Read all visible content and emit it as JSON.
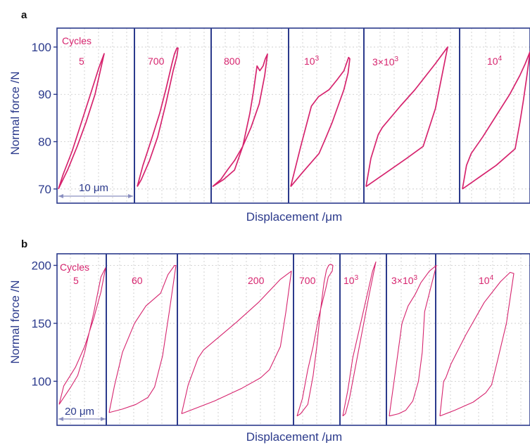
{
  "colors": {
    "frame": "#2b3a8c",
    "curve": "#d6246e",
    "grid": "#c8c8c8",
    "scale_bar": "#8a8fc0"
  },
  "chart_data": [
    {
      "type": "line",
      "panel_label": "a",
      "xlabel": "Displacement /μm",
      "ylabel": "Normal force /N",
      "yticks": [
        "70",
        "80",
        "90",
        "100"
      ],
      "ylim": [
        67,
        104
      ],
      "legend_title": "Cycles",
      "scale_bar_label": "10 μm",
      "grid": true,
      "series": [
        {
          "cycles": "5",
          "label_base": "5",
          "label_exp": "",
          "x": [
            0.0,
            0.2,
            0.41,
            0.6,
            0.8,
            1.0,
            0.88,
            0.7,
            0.5,
            0.3,
            0.1,
            0.0
          ],
          "y": [
            70,
            74,
            79,
            84,
            90,
            98.6,
            95.5,
            90,
            84,
            78,
            73,
            70
          ]
        },
        {
          "cycles": "700",
          "label_base": "700",
          "label_exp": "",
          "x": [
            0.0,
            0.14,
            0.35,
            0.55,
            0.7,
            0.85,
            0.91,
            0.97,
            1.0,
            0.97,
            0.88,
            0.7,
            0.5,
            0.3,
            0.1,
            0.0
          ],
          "y": [
            70.5,
            75,
            80.5,
            86,
            91,
            96.5,
            98.5,
            99.8,
            99.8,
            98,
            95,
            88,
            81,
            76,
            72,
            70.5
          ]
        },
        {
          "cycles": "800",
          "label_base": "800",
          "label_exp": "",
          "x": [
            0.0,
            0.2,
            0.4,
            0.55,
            0.68,
            0.75,
            0.78,
            0.81,
            0.86,
            0.92,
            0.96,
            1.0,
            0.95,
            0.85,
            0.7,
            0.55,
            0.4,
            0.27,
            0.15,
            0.0
          ],
          "y": [
            70.5,
            72,
            74,
            79,
            86,
            91,
            93.5,
            96,
            95,
            96,
            97.5,
            98.5,
            94,
            88,
            83,
            79,
            76,
            74,
            72,
            70.5
          ]
        },
        {
          "cycles": "10",
          "label_base": "10",
          "label_exp": "3",
          "x": [
            0.0,
            0.2,
            0.48,
            0.6,
            0.7,
            0.8,
            0.9,
            0.97,
            1.0,
            0.98,
            0.9,
            0.78,
            0.65,
            0.47,
            0.35,
            0.17,
            0.0
          ],
          "y": [
            70.5,
            73.5,
            77.5,
            81,
            84,
            87.5,
            91,
            94.5,
            97.5,
            97.8,
            95,
            93,
            91,
            89.5,
            87.5,
            79,
            70.5
          ]
        },
        {
          "cycles": "3×10³",
          "label_base": "3×10",
          "label_exp": "3",
          "x": [
            0.0,
            0.25,
            0.5,
            0.7,
            0.85,
            1.0,
            0.85,
            0.6,
            0.42,
            0.2,
            0.15,
            0.06,
            0.0
          ],
          "y": [
            70.5,
            73.5,
            76.5,
            79,
            87,
            100,
            96.5,
            91,
            87.5,
            83,
            81.5,
            76.5,
            70.5
          ]
        },
        {
          "cycles": "10",
          "label_base": "10",
          "label_exp": "4",
          "x": [
            0.0,
            0.25,
            0.5,
            0.78,
            0.85,
            0.9,
            0.95,
            1.0,
            0.93,
            0.85,
            0.7,
            0.5,
            0.3,
            0.13,
            0.06,
            0.0
          ],
          "y": [
            70,
            72.5,
            75,
            78.5,
            84,
            88.5,
            93.5,
            99,
            96.5,
            94,
            90,
            85.5,
            81,
            77.5,
            75,
            70
          ]
        }
      ]
    },
    {
      "type": "line",
      "panel_label": "b",
      "xlabel": "Displacement /μm",
      "ylabel": "Normal force /N",
      "yticks": [
        "100",
        "150",
        "200"
      ],
      "ylim": [
        62,
        210
      ],
      "legend_title": "Cycles",
      "scale_bar_label": "20 μm",
      "grid": true,
      "series": [
        {
          "cycles": "5",
          "label_base": "5",
          "label_exp": "",
          "x": [
            0.0,
            0.1,
            0.35,
            0.55,
            0.75,
            0.9,
            1.0,
            0.9,
            0.75,
            0.55,
            0.4,
            0.25,
            0.1,
            0.0
          ],
          "y": [
            80,
            96,
            112,
            130,
            155,
            177,
            198,
            190,
            160,
            125,
            105,
            95,
            86,
            80
          ]
        },
        {
          "cycles": "60",
          "label_base": "60",
          "label_exp": "",
          "x": [
            0.0,
            0.2,
            0.4,
            0.58,
            0.68,
            0.8,
            0.9,
            1.0,
            0.98,
            0.88,
            0.77,
            0.55,
            0.38,
            0.2,
            0.08,
            0.0
          ],
          "y": [
            73,
            76,
            80,
            86,
            95,
            122,
            160,
            200,
            200,
            192,
            176,
            165,
            150,
            125,
            96,
            73
          ]
        },
        {
          "cycles": "200",
          "label_base": "200",
          "label_exp": "",
          "x": [
            0.0,
            0.3,
            0.55,
            0.72,
            0.8,
            0.9,
            0.95,
            1.0,
            0.9,
            0.7,
            0.5,
            0.35,
            0.2,
            0.15,
            0.06,
            0.0
          ],
          "y": [
            72,
            83,
            94,
            103,
            110,
            130,
            160,
            195,
            188,
            168,
            151,
            139,
            127,
            120,
            97,
            72
          ]
        },
        {
          "cycles": "700",
          "label_base": "700",
          "label_exp": "",
          "x": [
            0.0,
            0.1,
            0.3,
            0.45,
            0.55,
            0.65,
            0.75,
            0.82,
            0.88,
            0.93,
            1.0,
            0.98,
            0.87,
            0.8,
            0.6,
            0.45,
            0.3,
            0.15,
            0.0
          ],
          "y": [
            70,
            72,
            80,
            105,
            130,
            160,
            185,
            196,
            200,
            201,
            200,
            195,
            190,
            180,
            155,
            130,
            110,
            85,
            70
          ]
        },
        {
          "cycles": "10",
          "label_base": "10",
          "label_exp": "3",
          "x": [
            0.0,
            0.08,
            0.2,
            0.4,
            0.6,
            0.8,
            1.0,
            0.9,
            0.7,
            0.5,
            0.3,
            0.15,
            0.0
          ],
          "y": [
            70,
            72,
            85,
            115,
            145,
            175,
            203,
            195,
            170,
            145,
            120,
            92,
            70
          ]
        },
        {
          "cycles": "3×10³",
          "label_base": "3×10",
          "label_exp": "3",
          "x": [
            0.0,
            0.2,
            0.35,
            0.5,
            0.62,
            0.7,
            0.75,
            1.0,
            0.85,
            0.67,
            0.55,
            0.4,
            0.27,
            0.12,
            0.0
          ],
          "y": [
            70,
            72,
            75,
            83,
            100,
            125,
            160,
            200,
            195,
            185,
            175,
            165,
            150,
            105,
            70
          ]
        },
        {
          "cycles": "10",
          "label_base": "10",
          "label_exp": "4",
          "x": [
            0.0,
            0.2,
            0.45,
            0.62,
            0.7,
            0.78,
            0.9,
            1.0,
            0.95,
            0.82,
            0.6,
            0.35,
            0.15,
            0.08,
            0.05,
            0.0
          ],
          "y": [
            70,
            75,
            82,
            90,
            97,
            118,
            150,
            193,
            194,
            186,
            168,
            140,
            115,
            103,
            100,
            70
          ]
        }
      ]
    }
  ]
}
